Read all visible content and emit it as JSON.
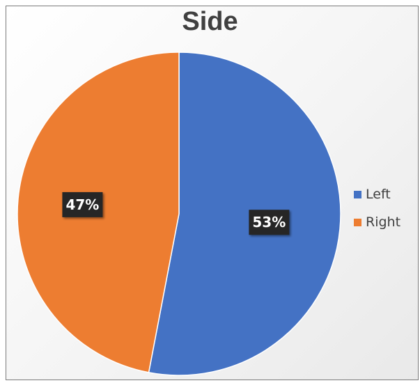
{
  "chart_data": {
    "type": "pie",
    "title": "Side",
    "slices": [
      {
        "label": "Left",
        "value": 53,
        "data_label": "53%",
        "color": "#4472C4"
      },
      {
        "label": "Right",
        "value": 47,
        "data_label": "47%",
        "color": "#ED7D31"
      }
    ],
    "start_angle_deg": 0,
    "direction": "clockwise",
    "legend_position": "right",
    "data_label_style": {
      "background": "#262626",
      "text_color": "#ffffff"
    }
  }
}
